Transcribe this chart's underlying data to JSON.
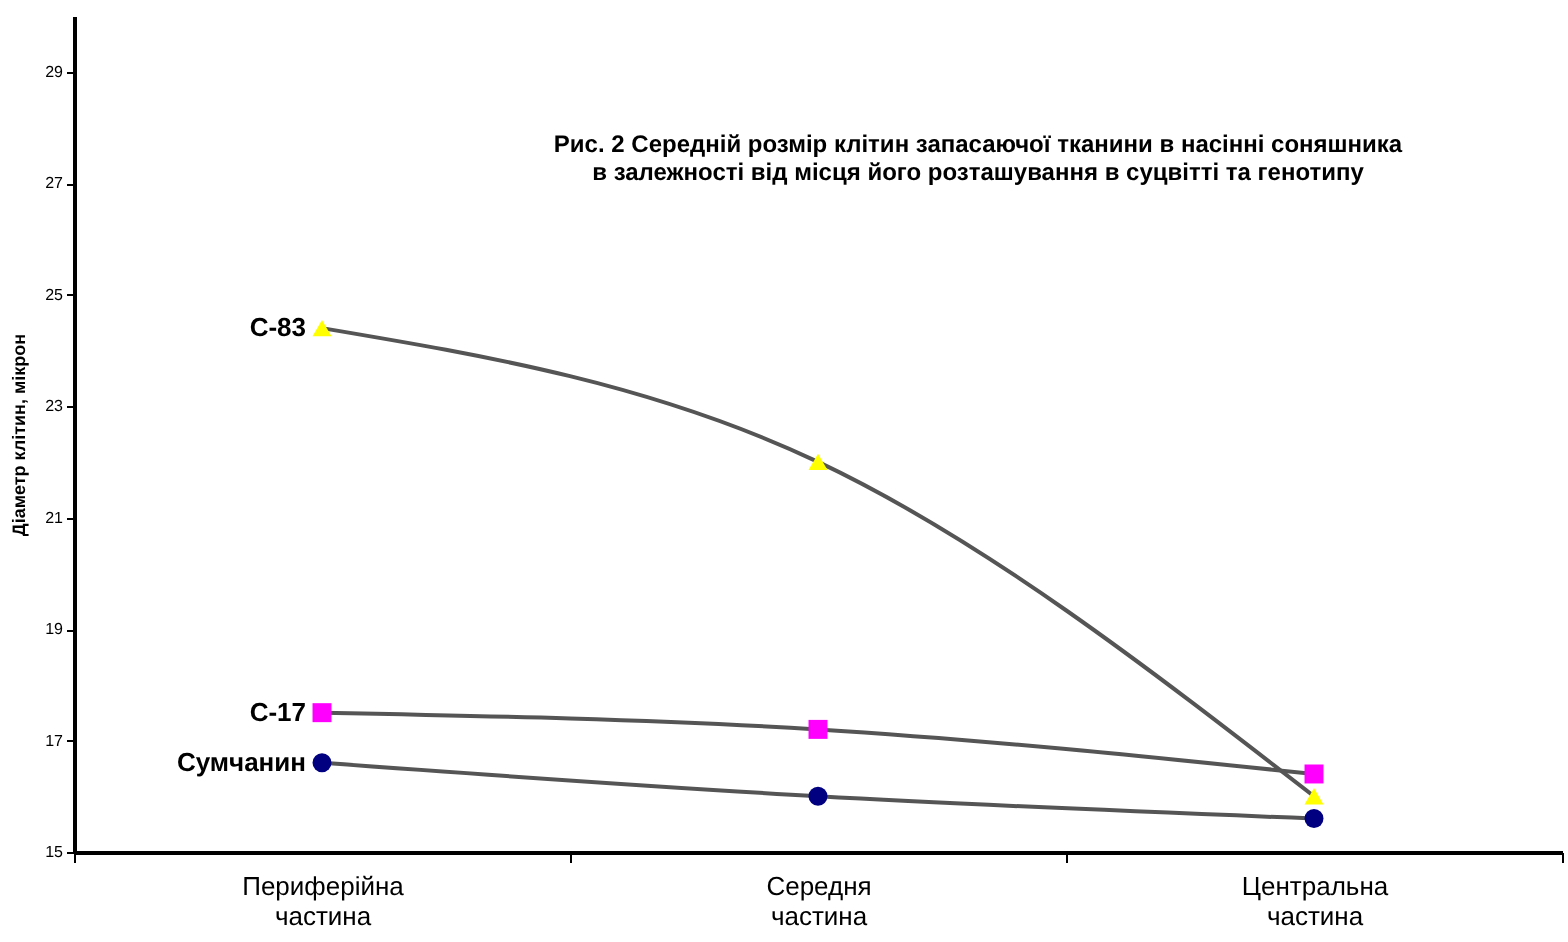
{
  "chart_data": {
    "type": "line",
    "title": "Рис. 2  Середній розмір клітин запасаючої тканини в насінні соняшника\nв залежності від місця його розташування в суцвітті та генотипу",
    "ylabel": "Діаметр клітин, мікрон",
    "categories": [
      "Периферійна частина",
      "Середня частина",
      "Центральна частина"
    ],
    "series": [
      {
        "name": "С-83",
        "color": "#ffff00",
        "marker": "triangle",
        "values": [
          24.4,
          22.0,
          16.0
        ]
      },
      {
        "name": "С-17",
        "color": "#ff00ff",
        "marker": "square",
        "values": [
          17.5,
          17.2,
          16.4
        ]
      },
      {
        "name": "Сумчанин",
        "color": "#000080",
        "marker": "circle",
        "values": [
          16.6,
          16.0,
          15.6
        ]
      }
    ],
    "ylim": [
      15,
      30
    ],
    "yticks": [
      15,
      17,
      19,
      21,
      23,
      25,
      27,
      29
    ],
    "grid": false,
    "legend": false
  }
}
